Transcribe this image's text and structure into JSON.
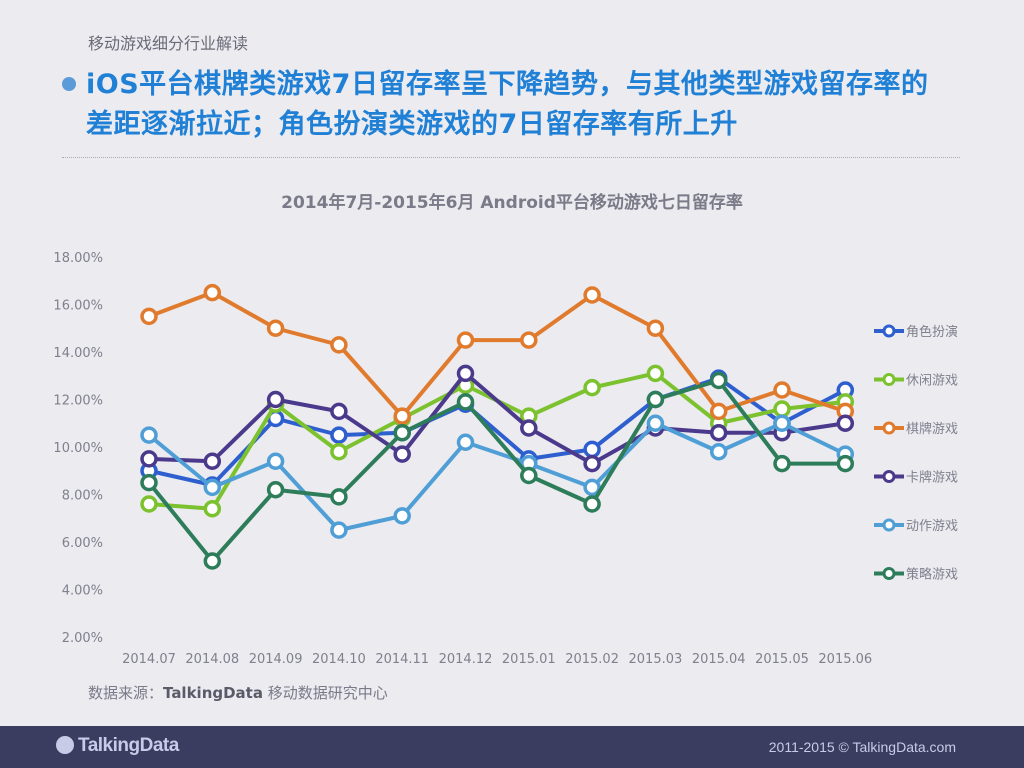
{
  "header": {
    "section_label": "移动游戏细分行业解读",
    "headline_line1": "iOS平台棋牌类游戏7日留存率呈下降趋势，与其他类型游戏留存率的",
    "headline_line2": "差距逐渐拉近；角色扮演类游戏的7日留存率有所上升"
  },
  "source": {
    "prefix": "数据来源：",
    "brand": "TalkingData",
    "suffix": " 移动数据研究中心"
  },
  "footer": {
    "logo": "TalkingData",
    "copyright": "2011-2015 © TalkingData.com"
  },
  "chart_data": {
    "type": "line",
    "title": "2014年7月-2015年6月 Android平台移动游戏七日留存率",
    "xlabel": "",
    "ylabel": "",
    "ylim": [
      2,
      18
    ],
    "yticks": [
      "2.00%",
      "4.00%",
      "6.00%",
      "8.00%",
      "10.00%",
      "12.00%",
      "14.00%",
      "16.00%",
      "18.00%"
    ],
    "grid": false,
    "legend_position": "right",
    "categories": [
      "2014.07",
      "2014.08",
      "2014.09",
      "2014.10",
      "2014.11",
      "2014.12",
      "2015.01",
      "2015.02",
      "2015.03",
      "2015.04",
      "2015.05",
      "2015.06"
    ],
    "series": [
      {
        "name": "角色扮演",
        "color": "#2e5fcf",
        "values": [
          9.0,
          8.4,
          11.2,
          10.5,
          10.6,
          11.8,
          9.5,
          9.9,
          12.0,
          12.9,
          11.0,
          12.4
        ]
      },
      {
        "name": "休闲游戏",
        "color": "#7cc22e",
        "values": [
          7.6,
          7.4,
          11.8,
          9.8,
          11.2,
          12.6,
          11.3,
          12.5,
          13.1,
          11.0,
          11.6,
          11.9
        ]
      },
      {
        "name": "棋牌游戏",
        "color": "#e07b2e",
        "values": [
          15.5,
          16.5,
          15.0,
          14.3,
          11.3,
          14.5,
          14.5,
          16.4,
          15.0,
          11.5,
          12.4,
          11.5
        ]
      },
      {
        "name": "卡牌游戏",
        "color": "#4b3a8c",
        "values": [
          9.5,
          9.4,
          12.0,
          11.5,
          9.7,
          13.1,
          10.8,
          9.3,
          10.8,
          10.6,
          10.6,
          11.0
        ]
      },
      {
        "name": "动作游戏",
        "color": "#4f9fd6",
        "values": [
          10.5,
          8.3,
          9.4,
          6.5,
          7.1,
          10.2,
          9.3,
          8.3,
          11.0,
          9.8,
          11.0,
          9.7
        ]
      },
      {
        "name": "策略游戏",
        "color": "#2e7d5a",
        "values": [
          8.5,
          5.2,
          8.2,
          7.9,
          10.6,
          11.9,
          8.8,
          7.6,
          12.0,
          12.8,
          9.3,
          9.3
        ]
      }
    ]
  }
}
